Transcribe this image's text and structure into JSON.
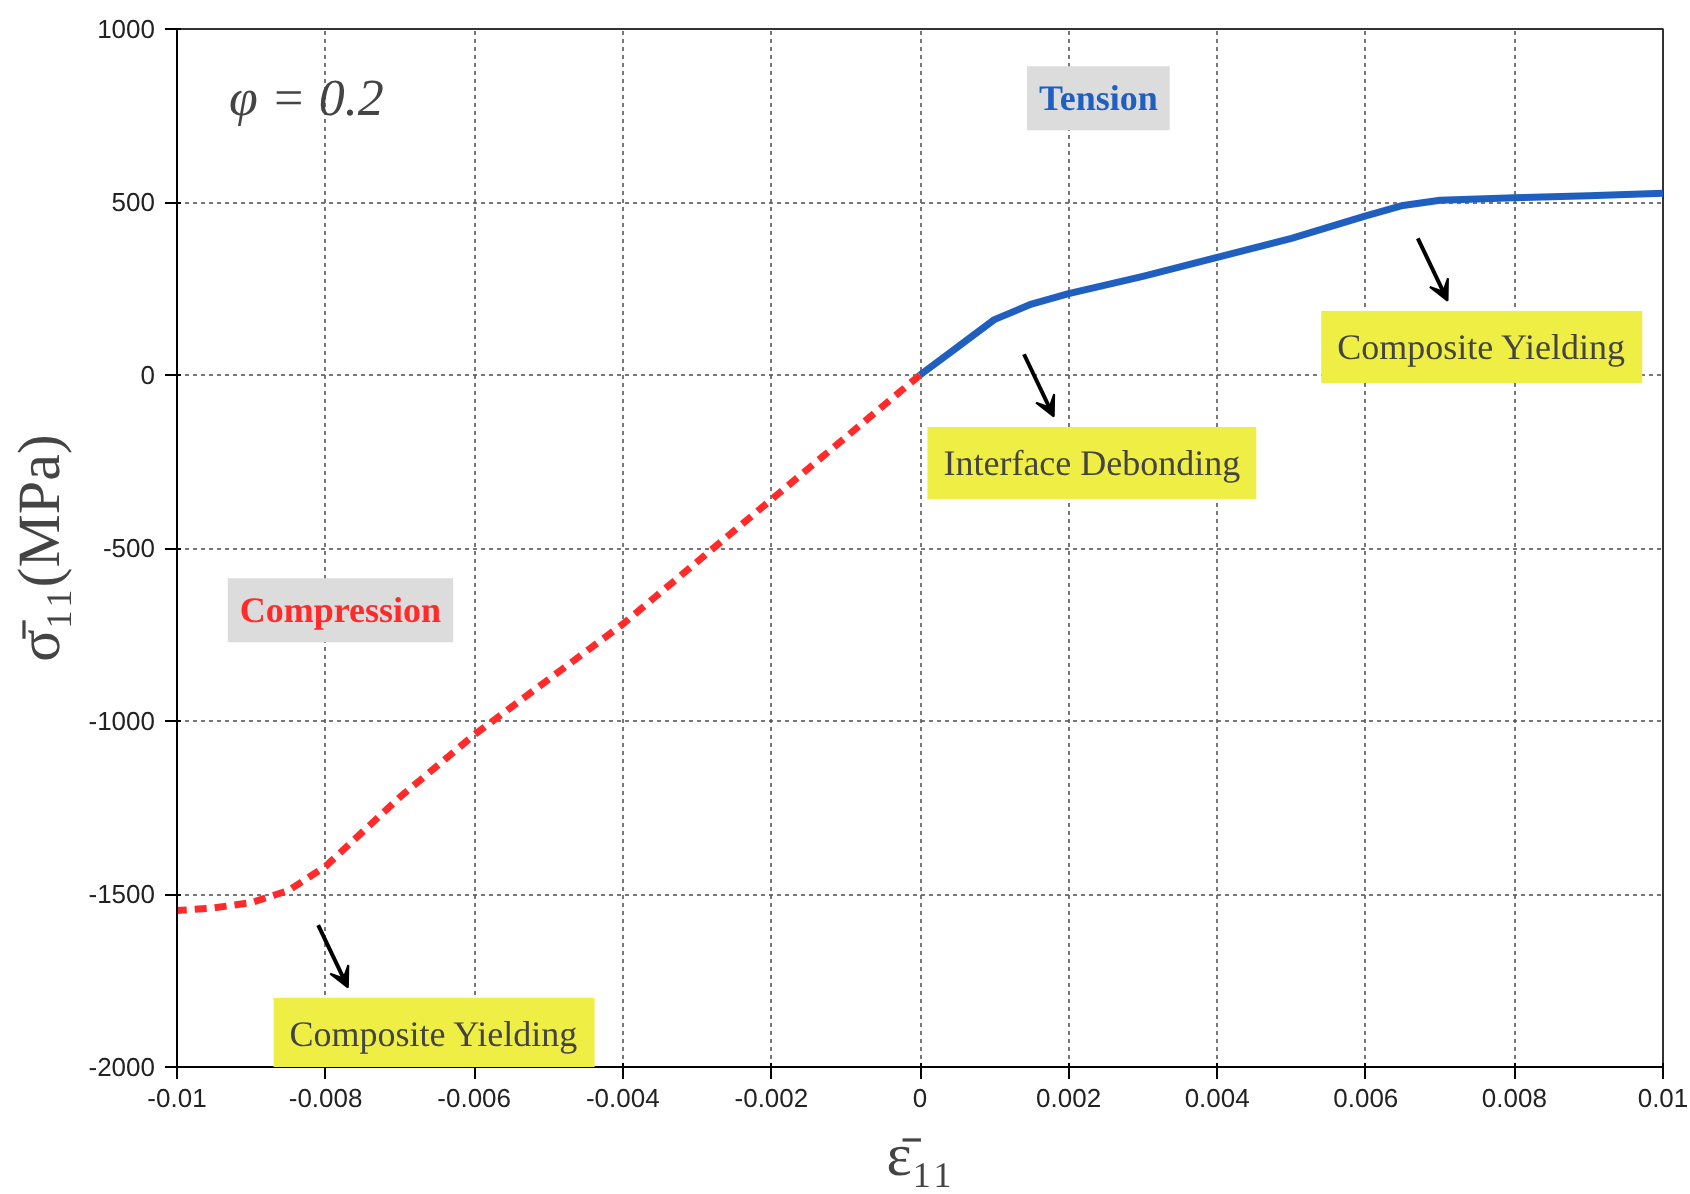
{
  "chart_data": {
    "type": "line",
    "xlabel": "ε̄₁₁",
    "ylabel": "σ̄₁₁(MPa)",
    "xlim": [
      -0.01,
      0.01
    ],
    "xticks": [
      -0.01,
      -0.008,
      -0.006,
      -0.004,
      -0.002,
      0,
      0.002,
      0.004,
      0.006,
      0.008,
      0.01
    ],
    "ylim": [
      -2000,
      1000
    ],
    "yticks": [
      -2000,
      -1500,
      -1000,
      -500,
      0,
      500,
      1000
    ],
    "grid": true,
    "legend": false,
    "series": [
      {
        "name": "Tension",
        "color": "#1f5fbf",
        "line_style": "solid",
        "x": [
          0,
          0.0005,
          0.001,
          0.0015,
          0.002,
          0.003,
          0.004,
          0.005,
          0.006,
          0.0065,
          0.007,
          0.008,
          0.009,
          0.01
        ],
        "values": [
          0,
          80,
          160,
          205,
          235,
          285,
          340,
          395,
          460,
          490,
          505,
          512,
          518,
          525
        ]
      },
      {
        "name": "Compression",
        "color": "#ff2a2a",
        "line_style": "dashed",
        "x": [
          0,
          -0.001,
          -0.002,
          -0.003,
          -0.004,
          -0.005,
          -0.006,
          -0.007,
          -0.008,
          -0.0085,
          -0.009,
          -0.0095,
          -0.01
        ],
        "values": [
          0,
          -180,
          -360,
          -540,
          -720,
          -880,
          -1040,
          -1220,
          -1420,
          -1490,
          -1525,
          -1540,
          -1548
        ]
      }
    ],
    "annotations": [
      "φ = 0.2",
      "Interface Debonding",
      "Composite Yielding",
      "Composite Yielding"
    ]
  }
}
